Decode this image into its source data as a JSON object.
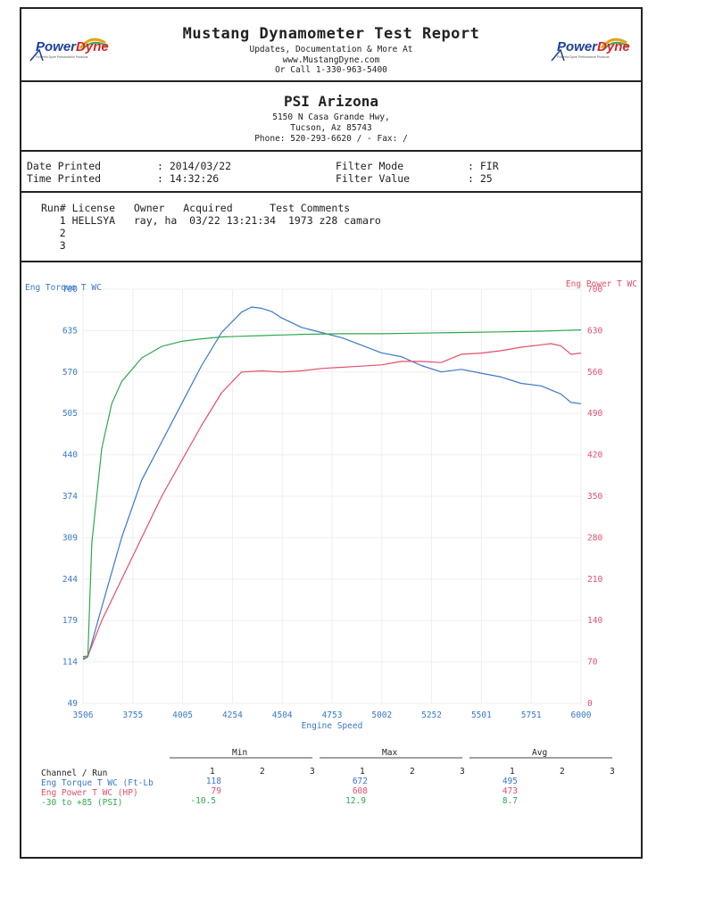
{
  "header": {
    "title": "Mustang Dynamometer Test Report",
    "line1": "Updates, Documentation & More At",
    "line2": "www.MustangDyne.com",
    "line3": "Or Call 1-330-963-5400",
    "logo_text_a": "Power",
    "logo_text_b": "Dyne",
    "logo_tag": "Powerful Dyne Performance Products"
  },
  "shop": {
    "name": "PSI Arizona",
    "address1": "5150 N Casa Grande Hwy,",
    "address2": "Tucson, Az  85743",
    "phone": "Phone: 520-293-6620 /  - Fax:  /"
  },
  "info": {
    "date_label": "Date Printed",
    "date_value": ": 2014/03/22",
    "time_label": "Time Printed",
    "time_value": ": 14:32:26",
    "filter_mode_label": "Filter Mode",
    "filter_mode_value": ": FIR",
    "filter_value_label": "Filter Value",
    "filter_value_value": ": 25"
  },
  "runs": {
    "header": "Run# License   Owner   Acquired      Test Comments",
    "rows": [
      "   1 HELLSYA   ray, ha  03/22 13:21:34  1973 z28 camaro",
      "   2",
      "   3"
    ]
  },
  "chart_data": {
    "type": "line",
    "xlabel": "Engine Speed",
    "x_ticks": [
      "3506",
      "3755",
      "4005",
      "4254",
      "4504",
      "4753",
      "5002",
      "5252",
      "5501",
      "5751",
      "6000"
    ],
    "xlim": [
      3506,
      6000
    ],
    "left_axis": {
      "label": "Eng Torque T WC",
      "ticks": [
        "700",
        "635",
        "570",
        "505",
        "440",
        "374",
        "309",
        "244",
        "179",
        "114",
        "49"
      ],
      "ylim": [
        49,
        700
      ]
    },
    "right_axis": {
      "label": "Eng Power T WC",
      "ticks": [
        "700",
        "630",
        "560",
        "490",
        "420",
        "350",
        "280",
        "210",
        "140",
        "70",
        "0"
      ],
      "ylim": [
        0,
        700
      ]
    },
    "colors": {
      "torque": "#3a78c9",
      "power": "#e0506a",
      "boost": "#2fa84f"
    },
    "series": [
      {
        "name": "Eng Torque T WC",
        "axis": "left",
        "x": [
          3506,
          3530,
          3600,
          3700,
          3800,
          3900,
          4000,
          4100,
          4200,
          4300,
          4350,
          4400,
          4450,
          4500,
          4600,
          4700,
          4800,
          4900,
          5000,
          5100,
          5200,
          5300,
          5400,
          5500,
          5600,
          5700,
          5800,
          5900,
          5950,
          6000
        ],
        "y": [
          118,
          122,
          200,
          310,
          400,
          460,
          520,
          580,
          632,
          664,
          672,
          670,
          665,
          655,
          640,
          632,
          624,
          612,
          600,
          594,
          580,
          570,
          574,
          568,
          562,
          552,
          548,
          535,
          522,
          520
        ]
      },
      {
        "name": "Eng Power T WC",
        "axis": "right",
        "x": [
          3506,
          3530,
          3600,
          3700,
          3800,
          3900,
          4000,
          4100,
          4200,
          4300,
          4400,
          4500,
          4600,
          4700,
          4800,
          4900,
          5000,
          5100,
          5200,
          5300,
          5400,
          5500,
          5600,
          5700,
          5800,
          5850,
          5900,
          5950,
          6000
        ],
        "y": [
          79,
          80,
          140,
          210,
          280,
          350,
          410,
          470,
          525,
          560,
          562,
          560,
          562,
          566,
          568,
          570,
          572,
          578,
          578,
          576,
          590,
          592,
          596,
          602,
          606,
          608,
          604,
          590,
          592
        ]
      },
      {
        "name": "-30 to +85 (PSI)",
        "axis": "left",
        "x": [
          3506,
          3530,
          3550,
          3600,
          3650,
          3700,
          3800,
          3900,
          4000,
          4100,
          4200,
          4300,
          4400,
          4500,
          4600,
          4800,
          5000,
          5200,
          5400,
          5600,
          5800,
          6000
        ],
        "y": [
          120,
          122,
          300,
          450,
          520,
          555,
          592,
          610,
          618,
          622,
          625,
          626,
          627,
          628,
          629,
          630,
          630,
          631,
          632,
          633,
          634,
          636
        ]
      }
    ]
  },
  "summary": {
    "min_label": "Min",
    "max_label": "Max",
    "avg_label": "Avg",
    "channel_label": "Channel / Run",
    "run_numbers": [
      "1",
      "2",
      "3"
    ],
    "rows": [
      {
        "name": "Eng Torque T WC (Ft-Lb",
        "min": "118",
        "max": "672",
        "avg": "495",
        "color": "#3a78c9"
      },
      {
        "name": "Eng Power T WC (HP)",
        "min": "79",
        "max": "608",
        "avg": "473",
        "color": "#e0506a"
      },
      {
        "name": "-30 to +85 (PSI)",
        "min": "-10.5",
        "max": "12.9",
        "avg": "8.7",
        "color": "#2fa84f"
      }
    ]
  }
}
